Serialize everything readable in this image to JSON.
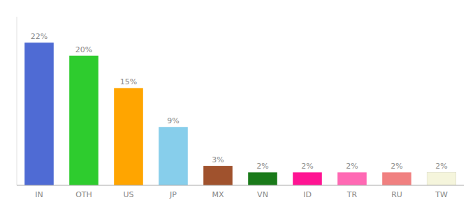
{
  "chart_data": {
    "type": "bar",
    "categories": [
      "IN",
      "OTH",
      "US",
      "JP",
      "MX",
      "VN",
      "ID",
      "TR",
      "RU",
      "TW"
    ],
    "values": [
      22,
      20,
      15,
      9,
      3,
      2,
      2,
      2,
      2,
      2
    ],
    "value_labels": [
      "22%",
      "20%",
      "15%",
      "9%",
      "3%",
      "2%",
      "2%",
      "2%",
      "2%",
      "2%"
    ],
    "colors": [
      "#4F6BD4",
      "#2ECC2E",
      "#FFA500",
      "#87CEEB",
      "#A0522D",
      "#1A7A1A",
      "#FF1493",
      "#FF69B4",
      "#F08080",
      "#F5F5DC"
    ],
    "ylim": [
      0,
      26
    ],
    "data_labels": true,
    "tick_labels": "x",
    "grid": false
  }
}
